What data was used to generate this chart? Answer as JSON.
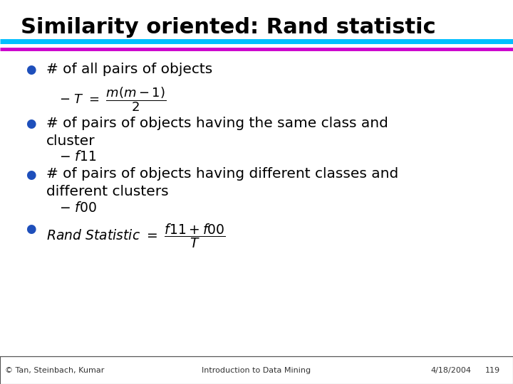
{
  "title": "Similarity oriented: Rand statistic",
  "title_color": "#000000",
  "title_fontsize": 22,
  "bg_color": "#ffffff",
  "line1_color": "#00BFFF",
  "line2_color": "#CC00CC",
  "bullet_color": "#1E4FBB",
  "footer_text": "© Tan, Steinbach, Kumar",
  "footer_center": "Introduction to Data Mining",
  "footer_right": "4/18/2004",
  "footer_page": "119"
}
